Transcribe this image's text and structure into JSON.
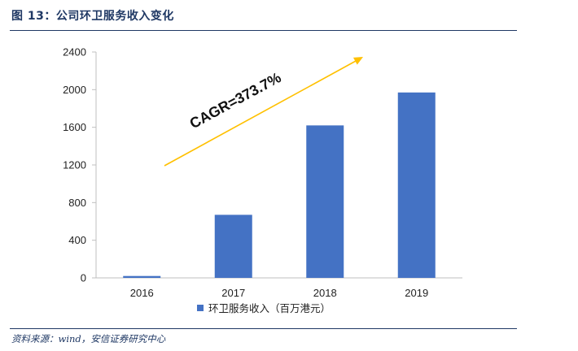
{
  "figure": {
    "title": "图 13：公司环卫服务收入变化",
    "source": "资料来源：wind，安信证券研究中心"
  },
  "colors": {
    "bar": "#4472c4",
    "arrow": "#ffc000",
    "axis": "#bfbfbf",
    "rule": "#1f3864"
  },
  "chart_data": {
    "type": "bar",
    "categories": [
      "2016",
      "2017",
      "2018",
      "2019"
    ],
    "series": [
      {
        "name": "环卫服务收入（百万港元）",
        "values": [
          20,
          670,
          1620,
          1970
        ]
      }
    ],
    "ylim": [
      0,
      2400
    ],
    "yticks": [
      "0",
      "400",
      "800",
      "1200",
      "1600",
      "2000",
      "2400"
    ],
    "grid": false,
    "legend": "bottom",
    "annotation": {
      "text": "CAGR=373.7%"
    }
  }
}
